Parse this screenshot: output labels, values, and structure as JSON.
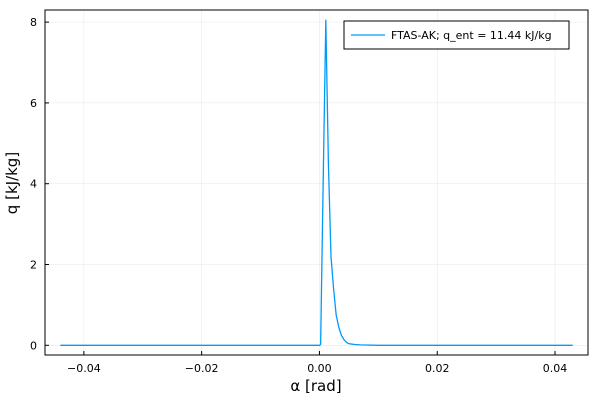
{
  "chart_data": {
    "type": "line",
    "title": "",
    "xlabel": "α [rad]",
    "ylabel": "q [kJ/kg]",
    "xlim": [
      -0.0466,
      0.0456
    ],
    "ylim": [
      -0.24,
      8.3
    ],
    "x_ticks": [
      -0.04,
      -0.02,
      0.0,
      0.02,
      0.04
    ],
    "x_tick_labels": [
      "−0.04",
      "−0.02",
      "0.00",
      "0.02",
      "0.04"
    ],
    "y_ticks": [
      0,
      2,
      4,
      6,
      8
    ],
    "y_tick_labels": [
      "0",
      "2",
      "4",
      "6",
      "8"
    ],
    "grid": true,
    "legend_position": "top-right",
    "series": [
      {
        "name": "FTAS-AK; q_ent = 11.44 kJ/kg",
        "color": "#009AF9",
        "x": [
          -0.044,
          -0.02,
          0.0,
          0.0002,
          0.00064,
          0.00108,
          0.00152,
          0.00196,
          0.0024,
          0.00284,
          0.00328,
          0.00372,
          0.00416,
          0.0046,
          0.005,
          0.006,
          0.007,
          0.01,
          0.02,
          0.043
        ],
        "y": [
          0,
          0,
          0,
          0.02,
          4.1,
          8.05,
          4.5,
          2.2,
          1.4,
          0.75,
          0.45,
          0.25,
          0.14,
          0.07,
          0.04,
          0.02,
          0.01,
          0,
          0,
          0
        ]
      }
    ]
  }
}
